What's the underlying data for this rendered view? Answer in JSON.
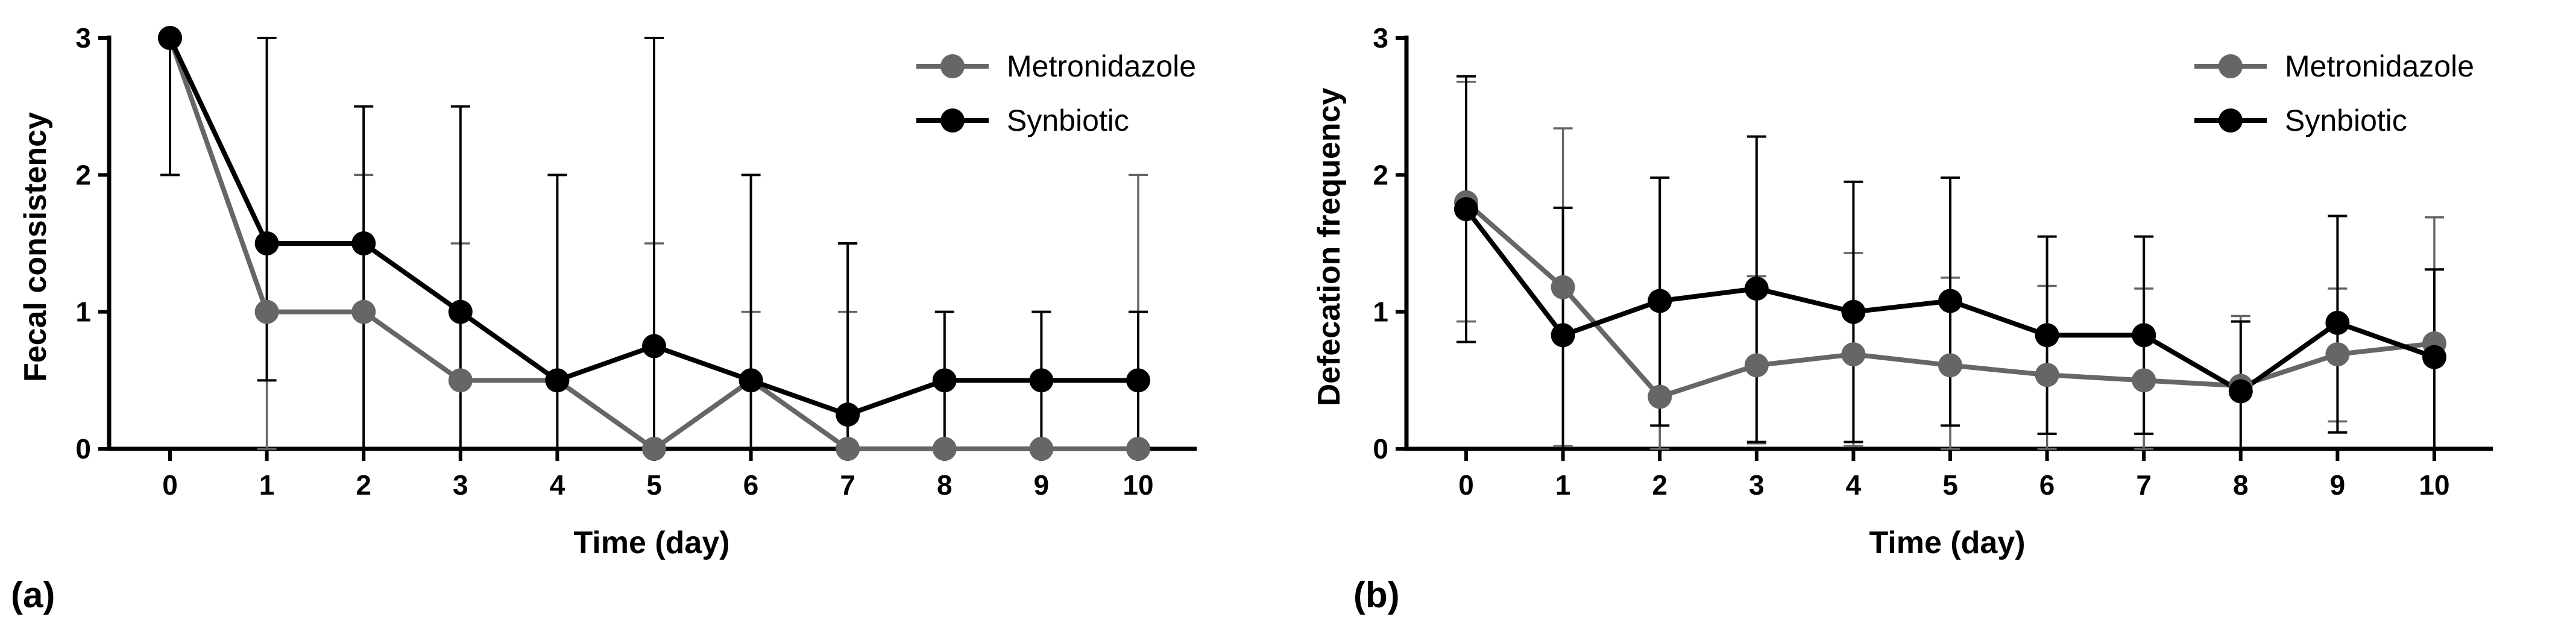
{
  "colors": {
    "metronidazole": "#666666",
    "synbiotic": "#000000",
    "axis": "#000000"
  },
  "chart_data": [
    {
      "type": "line",
      "panel_label": "(a)",
      "xlabel": "Time (day)",
      "ylabel": "Fecal consistency",
      "x": [
        0,
        1,
        2,
        3,
        4,
        5,
        6,
        7,
        8,
        9,
        10
      ],
      "x_tick_labels": [
        "0",
        "1",
        "2",
        "3",
        "4",
        "5",
        "6",
        "7",
        "8",
        "9",
        "10"
      ],
      "y_ticks": [
        0,
        1,
        2,
        3
      ],
      "y_tick_labels": [
        "0",
        "1",
        "2",
        "3"
      ],
      "xlim": [
        -0.7,
        10.7
      ],
      "ylim": [
        0,
        3
      ],
      "legend": "top-right",
      "series": [
        {
          "name": "Metronidazole",
          "color": "#666666",
          "values": [
            3,
            1,
            1,
            0.5,
            0.5,
            0,
            0.5,
            0,
            0,
            0,
            0
          ],
          "err_low": [
            2,
            0,
            0,
            0,
            0,
            0,
            0,
            0,
            0,
            0,
            0
          ],
          "err_high": [
            3,
            3,
            2,
            1.5,
            2,
            1.5,
            1,
            1,
            1,
            1,
            2
          ]
        },
        {
          "name": "Synbiotic",
          "color": "#000000",
          "values": [
            3,
            1.5,
            1.5,
            1,
            0.5,
            0.75,
            0.5,
            0.25,
            0.5,
            0.5,
            0.5
          ],
          "err_low": [
            2,
            0.5,
            0,
            0,
            0,
            0,
            0,
            0,
            0,
            0,
            0
          ],
          "err_high": [
            3,
            3,
            2.5,
            2.5,
            2,
            3,
            2,
            1.5,
            1,
            1,
            1
          ]
        }
      ]
    },
    {
      "type": "line",
      "panel_label": "(b)",
      "xlabel": "Time (day)",
      "ylabel": "Defecation frequency",
      "x": [
        0,
        1,
        2,
        3,
        4,
        5,
        6,
        7,
        8,
        9,
        10
      ],
      "x_tick_labels": [
        "0",
        "1",
        "2",
        "3",
        "4",
        "5",
        "6",
        "7",
        "8",
        "9",
        "10"
      ],
      "y_ticks": [
        0,
        1,
        2,
        3
      ],
      "y_tick_labels": [
        "0",
        "1",
        "2",
        "3"
      ],
      "xlim": [
        -0.7,
        10.7
      ],
      "ylim": [
        0,
        3
      ],
      "legend": "top-right",
      "series": [
        {
          "name": "Metronidazole",
          "color": "#666666",
          "values": [
            1.8,
            1.18,
            0.38,
            0.61,
            0.69,
            0.61,
            0.54,
            0.5,
            0.46,
            0.69,
            0.77
          ],
          "err_low": [
            0.93,
            0.02,
            0.0,
            0.04,
            0.02,
            0.0,
            0.0,
            0.0,
            0.0,
            0.2,
            0.0
          ],
          "err_high": [
            2.68,
            2.34,
            1.08,
            1.26,
            1.43,
            1.25,
            1.19,
            1.17,
            0.97,
            1.17,
            1.69
          ]
        },
        {
          "name": "Synbiotic",
          "color": "#000000",
          "values": [
            1.75,
            0.83,
            1.08,
            1.17,
            1.0,
            1.08,
            0.83,
            0.83,
            0.42,
            0.92,
            0.67
          ],
          "err_low": [
            0.78,
            0.0,
            0.17,
            0.05,
            0.05,
            0.17,
            0.11,
            0.11,
            0.0,
            0.12,
            0.0
          ],
          "err_high": [
            2.72,
            1.76,
            1.98,
            2.28,
            1.95,
            1.98,
            1.55,
            1.55,
            0.93,
            1.7,
            1.31
          ]
        }
      ]
    }
  ]
}
